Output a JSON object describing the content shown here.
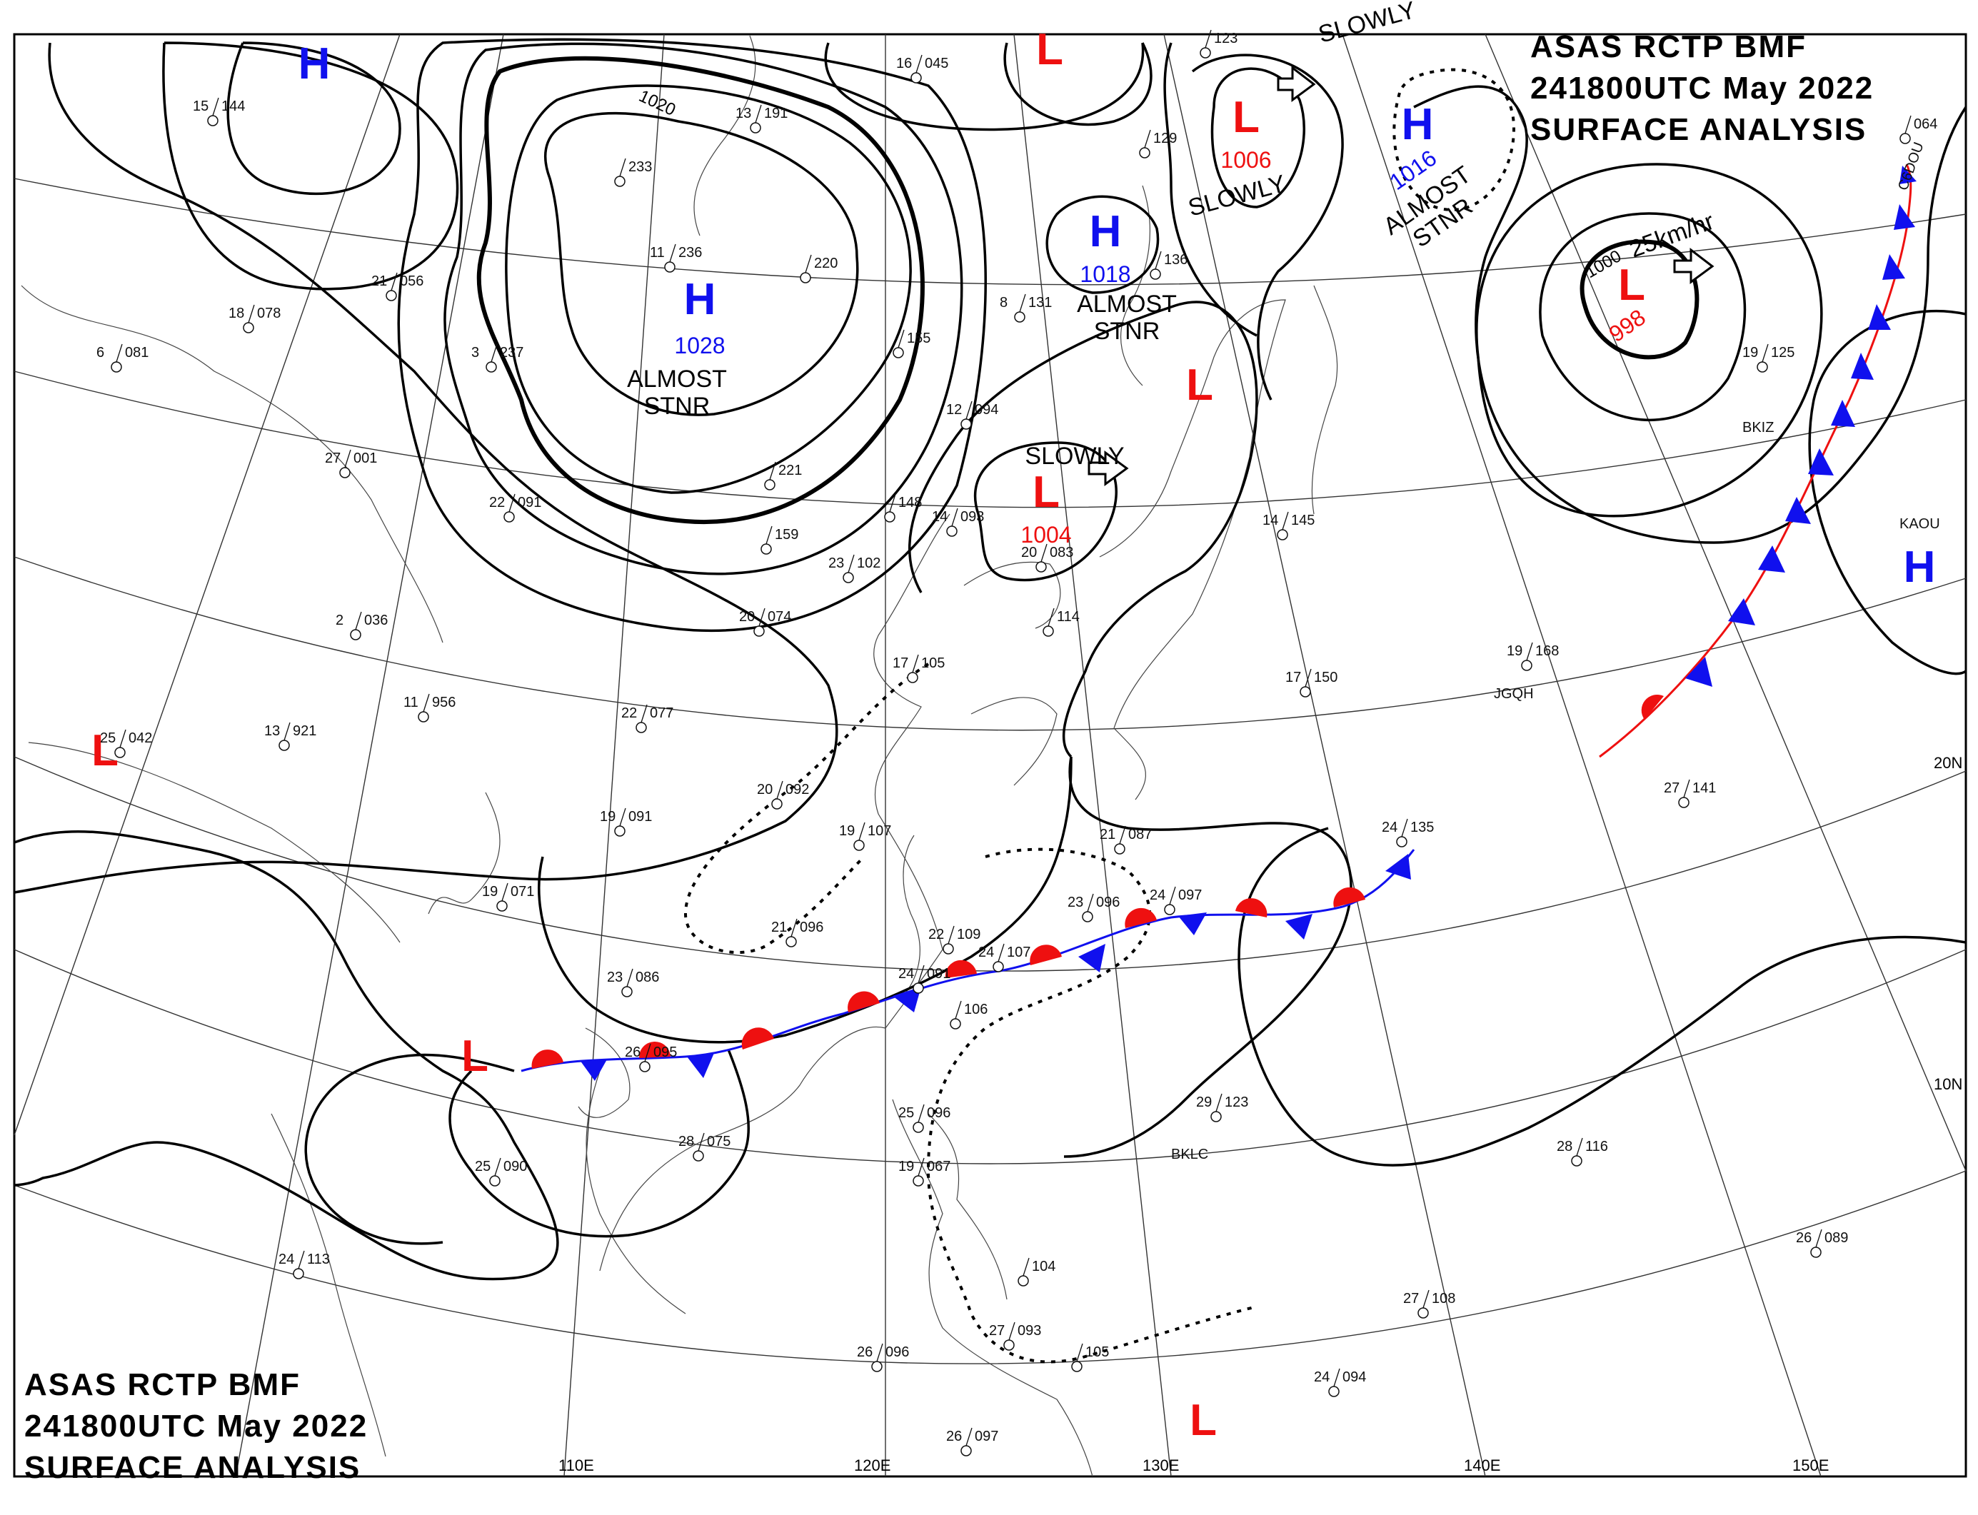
{
  "header_top": {
    "line1": "ASAS    RCTP    BMF",
    "line2": "241800UTC    May    2022",
    "line3": "SURFACE  ANALYSIS"
  },
  "header_bottom": {
    "line1": "ASAS    RCTP    BMF",
    "line2": "241800UTC    May    2022",
    "line3": "SURFACE  ANALYSIS"
  },
  "colors": {
    "high": "#1010ee",
    "low": "#ee1010",
    "warm_front": "#ee1010",
    "cold_front": "#1010ee",
    "isobar": "#000000"
  },
  "pressure_centers": [
    {
      "type": "H",
      "pressure": "1028",
      "note": "ALMOST STNR"
    },
    {
      "type": "H",
      "pressure": "1018",
      "note": "ALMOST STNR"
    },
    {
      "type": "H",
      "pressure": "1016",
      "note": "ALMOST STNR"
    },
    {
      "type": "L",
      "pressure": "1006",
      "note": "SLOWLY"
    },
    {
      "type": "L",
      "pressure": "1004",
      "note": "SLOWLY"
    },
    {
      "type": "L",
      "pressure": "998",
      "note": "25km/hr"
    },
    {
      "type": "H",
      "pressure": "",
      "note": ""
    },
    {
      "type": "H",
      "pressure": "",
      "note": ""
    },
    {
      "type": "L",
      "pressure": "",
      "note": ""
    },
    {
      "type": "L",
      "pressure": "",
      "note": ""
    },
    {
      "type": "L",
      "pressure": "",
      "note": ""
    },
    {
      "type": "L",
      "pressure": "",
      "note": ""
    },
    {
      "type": "L",
      "pressure": "",
      "note": ""
    }
  ],
  "isobar_labels": [
    "1020",
    "1000"
  ],
  "longitude_labels": [
    "110E",
    "120E",
    "130E",
    "140E",
    "150E"
  ],
  "latitude_labels": [
    "20N",
    "10N"
  ],
  "stations": [
    {
      "t": "15",
      "p": "144"
    },
    {
      "t": "13",
      "p": "191"
    },
    {
      "t": "16",
      "p": "045"
    },
    {
      "t": "",
      "p": "123"
    },
    {
      "t": "",
      "p": "233"
    },
    {
      "t": "11",
      "p": "236"
    },
    {
      "t": "",
      "p": "220"
    },
    {
      "t": "21",
      "p": "056"
    },
    {
      "t": "18",
      "p": "078"
    },
    {
      "t": "6",
      "p": "081"
    },
    {
      "t": "3",
      "p": "237"
    },
    {
      "t": "8",
      "p": "131"
    },
    {
      "t": "",
      "p": "155"
    },
    {
      "t": "",
      "p": "129"
    },
    {
      "t": "",
      "p": "136"
    },
    {
      "t": "12",
      "p": "094"
    },
    {
      "t": "27",
      "p": "001"
    },
    {
      "t": "",
      "p": "221"
    },
    {
      "t": "",
      "p": "159"
    },
    {
      "t": "22",
      "p": "091"
    },
    {
      "t": "23",
      "p": "102"
    },
    {
      "t": "",
      "p": "148"
    },
    {
      "t": "14",
      "p": "093"
    },
    {
      "t": "20",
      "p": "083"
    },
    {
      "t": "14",
      "p": "145"
    },
    {
      "t": "2",
      "p": "036"
    },
    {
      "t": "20",
      "p": "074"
    },
    {
      "t": "",
      "p": "114"
    },
    {
      "t": "17",
      "p": "105"
    },
    {
      "t": "13",
      "p": "921"
    },
    {
      "t": "11",
      "p": "956"
    },
    {
      "t": "22",
      "p": "077"
    },
    {
      "t": "25",
      "p": "042"
    },
    {
      "t": "19",
      "p": "168"
    },
    {
      "t": "17",
      "p": "150"
    },
    {
      "t": "19",
      "p": "125"
    },
    {
      "t": "20",
      "p": "092"
    },
    {
      "t": "19",
      "p": "091"
    },
    {
      "t": "19",
      "p": "107"
    },
    {
      "t": "21",
      "p": "087"
    },
    {
      "t": "27",
      "p": "141"
    },
    {
      "t": "24",
      "p": "135"
    },
    {
      "t": "19",
      "p": "071"
    },
    {
      "t": "21",
      "p": "096"
    },
    {
      "t": "22",
      "p": "109"
    },
    {
      "t": "23",
      "p": "096"
    },
    {
      "t": "24",
      "p": "097"
    },
    {
      "t": "24",
      "p": "107"
    },
    {
      "t": "24",
      "p": "091"
    },
    {
      "t": "",
      "p": "106"
    },
    {
      "t": "23",
      "p": "086"
    },
    {
      "t": "26",
      "p": "095"
    },
    {
      "t": "28",
      "p": "075"
    },
    {
      "t": "25",
      "p": "090"
    },
    {
      "t": "25",
      "p": "096"
    },
    {
      "t": "19",
      "p": "067"
    },
    {
      "t": "29",
      "p": "123"
    },
    {
      "t": "28",
      "p": "116"
    },
    {
      "t": "24",
      "p": "113"
    },
    {
      "t": "",
      "p": "104"
    },
    {
      "t": "26",
      "p": "096"
    },
    {
      "t": "27",
      "p": "093"
    },
    {
      "t": "",
      "p": "105"
    },
    {
      "t": "27",
      "p": "108"
    },
    {
      "t": "26",
      "p": "089"
    },
    {
      "t": "24",
      "p": "094"
    },
    {
      "t": "26",
      "p": "097"
    },
    {
      "t": "",
      "p": "064"
    }
  ],
  "station_ids": [
    "JGQH",
    "BKIZ",
    "KAOU",
    "BKLC",
    "C6DOU"
  ]
}
